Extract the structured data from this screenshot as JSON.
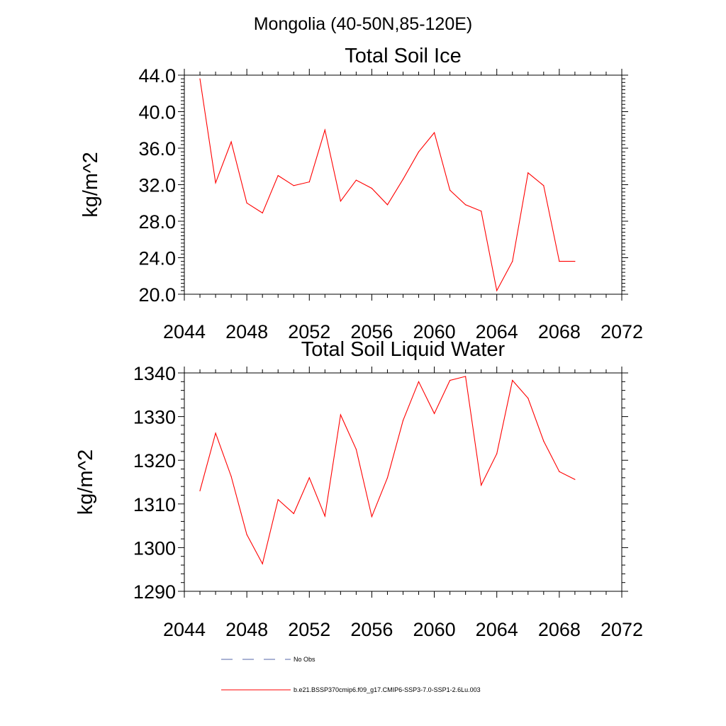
{
  "figure": {
    "suptitle": "Mongolia (40-50N,85-120E)"
  },
  "chart_data": [
    {
      "type": "line",
      "title": "Total Soil Ice",
      "xlabel": "",
      "ylabel": "kg/m^2",
      "xlim": [
        2044,
        2072
      ],
      "ylim": [
        20,
        44
      ],
      "xticks": [
        "2044",
        "2048",
        "2052",
        "2056",
        "2060",
        "2064",
        "2068",
        "2072"
      ],
      "yticks": [
        "20.0",
        "24.0",
        "28.0",
        "32.0",
        "36.0",
        "40.0",
        "44.0"
      ],
      "x": [
        2045,
        2046,
        2047,
        2048,
        2049,
        2050,
        2051,
        2052,
        2053,
        2054,
        2055,
        2056,
        2057,
        2058,
        2059,
        2060,
        2061,
        2062,
        2063,
        2064,
        2065,
        2066,
        2067,
        2068,
        2069
      ],
      "series": [
        {
          "name": "b.e21.BSSP370cmip6.f09_g17.CMIP6-SSP3-7.0-SSP1-2.6Lu.003",
          "color": "#ff0000",
          "values": [
            43.6,
            32.2,
            36.7,
            30.0,
            28.9,
            33.0,
            31.9,
            32.3,
            38.0,
            30.2,
            32.5,
            31.6,
            29.8,
            32.6,
            35.6,
            37.7,
            31.4,
            29.8,
            29.1,
            20.4,
            23.6,
            33.3,
            31.9,
            23.6,
            23.6
          ]
        }
      ]
    },
    {
      "type": "line",
      "title": "Total Soil Liquid Water",
      "xlabel": "",
      "ylabel": "kg/m^2",
      "xlim": [
        2044,
        2072
      ],
      "ylim": [
        1290,
        1340
      ],
      "xticks": [
        "2044",
        "2048",
        "2052",
        "2056",
        "2060",
        "2064",
        "2068",
        "2072"
      ],
      "yticks": [
        "1290",
        "1300",
        "1310",
        "1320",
        "1330",
        "1340"
      ],
      "x": [
        2045,
        2046,
        2047,
        2048,
        2049,
        2050,
        2051,
        2052,
        2053,
        2054,
        2055,
        2056,
        2057,
        2058,
        2059,
        2060,
        2061,
        2062,
        2063,
        2064,
        2065,
        2066,
        2067,
        2068,
        2069
      ],
      "series": [
        {
          "name": "b.e21.BSSP370cmip6.f09_g17.CMIP6-SSP3-7.0-SSP1-2.6Lu.003",
          "color": "#ff0000",
          "values": [
            1313.0,
            1326.2,
            1316.3,
            1303.0,
            1296.3,
            1311.0,
            1307.8,
            1316.0,
            1307.2,
            1330.4,
            1322.5,
            1307.1,
            1316.0,
            1329.1,
            1338.0,
            1330.7,
            1338.3,
            1339.2,
            1314.3,
            1321.5,
            1338.3,
            1334.2,
            1324.4,
            1317.4,
            1315.6
          ]
        }
      ]
    }
  ],
  "legend": {
    "items": [
      {
        "label": "No Obs",
        "color": "#5566aa",
        "style": "dashed"
      },
      {
        "label": "b.e21.BSSP370cmip6.f09_g17.CMIP6-SSP3-7.0-SSP1-2.6Lu.003",
        "color": "#ff0000",
        "style": "solid"
      }
    ]
  }
}
